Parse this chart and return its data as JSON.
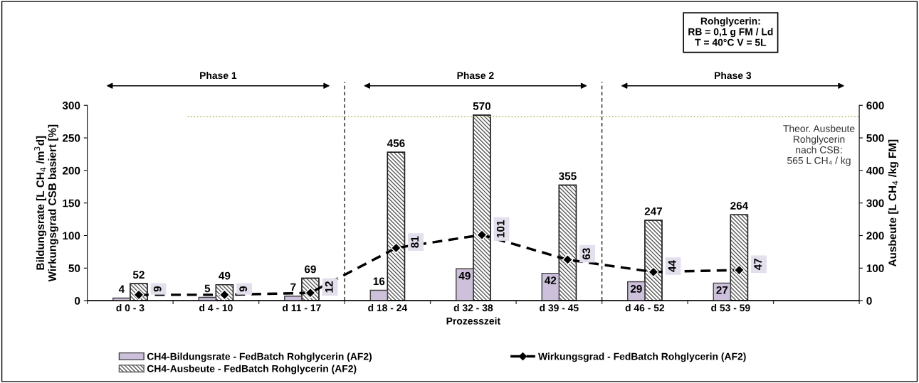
{
  "chart_data": {
    "type": "bar",
    "categories": [
      "d 0 - 3",
      "d 4 - 10",
      "d 11 - 17",
      "d 18 - 24",
      "d 32 - 38",
      "d 39 - 45",
      "d 46 - 52",
      "d 53 - 59",
      null
    ],
    "xlabel": "Prozesszeit",
    "ylabel": "Bildungsrate [L CH$_{4}$ /m$^{3}$d]\nWirkungsgrad CSB basiert [%]",
    "y2label": "Ausbeute [L CH$_{4}$ /kg FM]",
    "ylim": [
      0,
      300
    ],
    "yticks": [
      0,
      50,
      100,
      150,
      200,
      250,
      300
    ],
    "y2lim": [
      0,
      600
    ],
    "y2ticks": [
      0,
      100,
      200,
      300,
      400,
      500,
      600
    ],
    "series": [
      {
        "name": "CH4-Bildungsrate - FedBatch Rohglycerin (AF2)",
        "color": "#ccc0da",
        "values": [
          4,
          5,
          7,
          16,
          49,
          42,
          29,
          27,
          null
        ]
      },
      {
        "name": "CH4-Ausbeute - FedBatch Rohglycerin (AF2)",
        "axis": "y2",
        "color": "#595959",
        "values": [
          52,
          49,
          69,
          456,
          570,
          355,
          247,
          264,
          null
        ]
      },
      {
        "name": "Wirkungsgrad - FedBatch Rohglycerin (AF2)",
        "type": "line",
        "color": "#000000",
        "marker": "diamond",
        "line_style": "dashed",
        "values": [
          9,
          9,
          12,
          81,
          101,
          63,
          44,
          47,
          null
        ]
      }
    ],
    "data_labels": true,
    "ref_lines": [
      {
        "axis": "y2",
        "value": 565,
        "label": "Theor. Ausbeute\nRohglycerin\nnach CSB:\n565 L CH₄ / kg",
        "color": "#9bbb59",
        "line_style": "dotted"
      }
    ],
    "annotations": [
      "Rohglycerin:\nRB = 0,1 g FM / Ld\nT = 40°C V = 5L",
      "Phase 1",
      "Phase 2",
      "Phase 3"
    ],
    "legend": "bottom",
    "grid": false
  }
}
